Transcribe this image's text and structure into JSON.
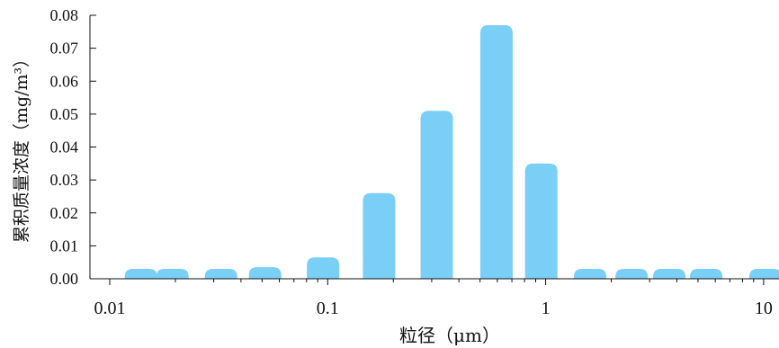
{
  "chart_data": {
    "type": "bar",
    "xlabel": "粒径（μm）",
    "ylabel": "累积质量浓度（mg/m³）",
    "x_scale": "log",
    "xlim": [
      0.01,
      10.5
    ],
    "ylim": [
      0,
      0.08
    ],
    "x_ticks": [
      0.01,
      0.1,
      1,
      10
    ],
    "x_tick_labels": [
      "0.01",
      "0.1",
      "1",
      "10"
    ],
    "y_ticks": [
      0,
      0.01,
      0.02,
      0.03,
      0.04,
      0.05,
      0.06,
      0.07,
      0.08
    ],
    "y_tick_labels": [
      "0.00",
      "0.01",
      "0.02",
      "0.03",
      "0.04",
      "0.05",
      "0.06",
      "0.07",
      "0.08"
    ],
    "bar_color": "#7acff7",
    "x": [
      0.0139,
      0.0194,
      0.0324,
      0.0516,
      0.0952,
      0.1721,
      0.3165,
      0.5948,
      0.9544,
      1.6,
      2.48,
      3.69,
      5.45,
      10.2
    ],
    "values": [
      0.003,
      0.003,
      0.003,
      0.0035,
      0.0065,
      0.026,
      0.051,
      0.077,
      0.035,
      0.003,
      0.003,
      0.003,
      0.003,
      0.003
    ],
    "grid": false
  }
}
